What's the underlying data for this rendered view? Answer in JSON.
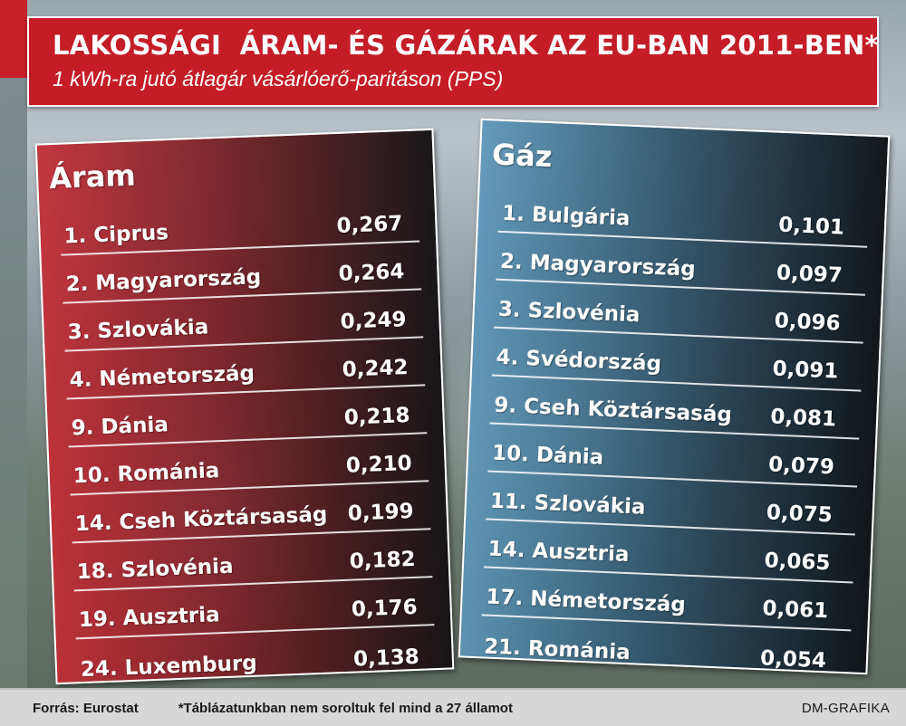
{
  "header": {
    "title": "LAKOSSÁGI  ÁRAM- ÉS GÁZÁRAK AZ EU-BAN 2011-BEN*",
    "subtitle": "1 kWh-ra jutó átlagár vásárlóerő-paritáson (PPS)"
  },
  "aram": {
    "title": "Áram",
    "rows": [
      {
        "label": "1. Ciprus",
        "value": "0,267"
      },
      {
        "label": "2. Magyarország",
        "value": "0,264"
      },
      {
        "label": "3. Szlovákia",
        "value": "0,249"
      },
      {
        "label": "4. Németország",
        "value": "0,242"
      },
      {
        "label": "9. Dánia",
        "value": "0,218"
      },
      {
        "label": "10. Románia",
        "value": "0,210"
      },
      {
        "label": "14. Cseh Köztársaság",
        "value": "0,199"
      },
      {
        "label": "18. Szlovénia",
        "value": "0,182"
      },
      {
        "label": "19. Ausztria",
        "value": "0,176"
      },
      {
        "label": "24. Luxemburg",
        "value": "0,138"
      }
    ]
  },
  "gaz": {
    "title": "Gáz",
    "rows": [
      {
        "label": "1. Bulgária",
        "value": "0,101"
      },
      {
        "label": "2. Magyarország",
        "value": "0,097"
      },
      {
        "label": "3. Szlovénia",
        "value": "0,096"
      },
      {
        "label": "4. Svédország",
        "value": "0,091"
      },
      {
        "label": "9. Cseh Köztársaság",
        "value": "0,081"
      },
      {
        "label": "10. Dánia",
        "value": "0,079"
      },
      {
        "label": "11. Szlovákia",
        "value": "0,075"
      },
      {
        "label": "14. Ausztria",
        "value": "0,065"
      },
      {
        "label": "17. Németország",
        "value": "0,061"
      },
      {
        "label": "21. Románia",
        "value": "0,054"
      }
    ]
  },
  "footer": {
    "source": "Forrás: Eurostat",
    "note": "*Táblázatunkban nem soroltuk fel mind a 27 államot",
    "credit": "DM-GRAFIKA"
  },
  "colors": {
    "header_red": "#c41d27",
    "aram_panel": "#c42c34",
    "gaz_panel": "#5c96b9"
  }
}
